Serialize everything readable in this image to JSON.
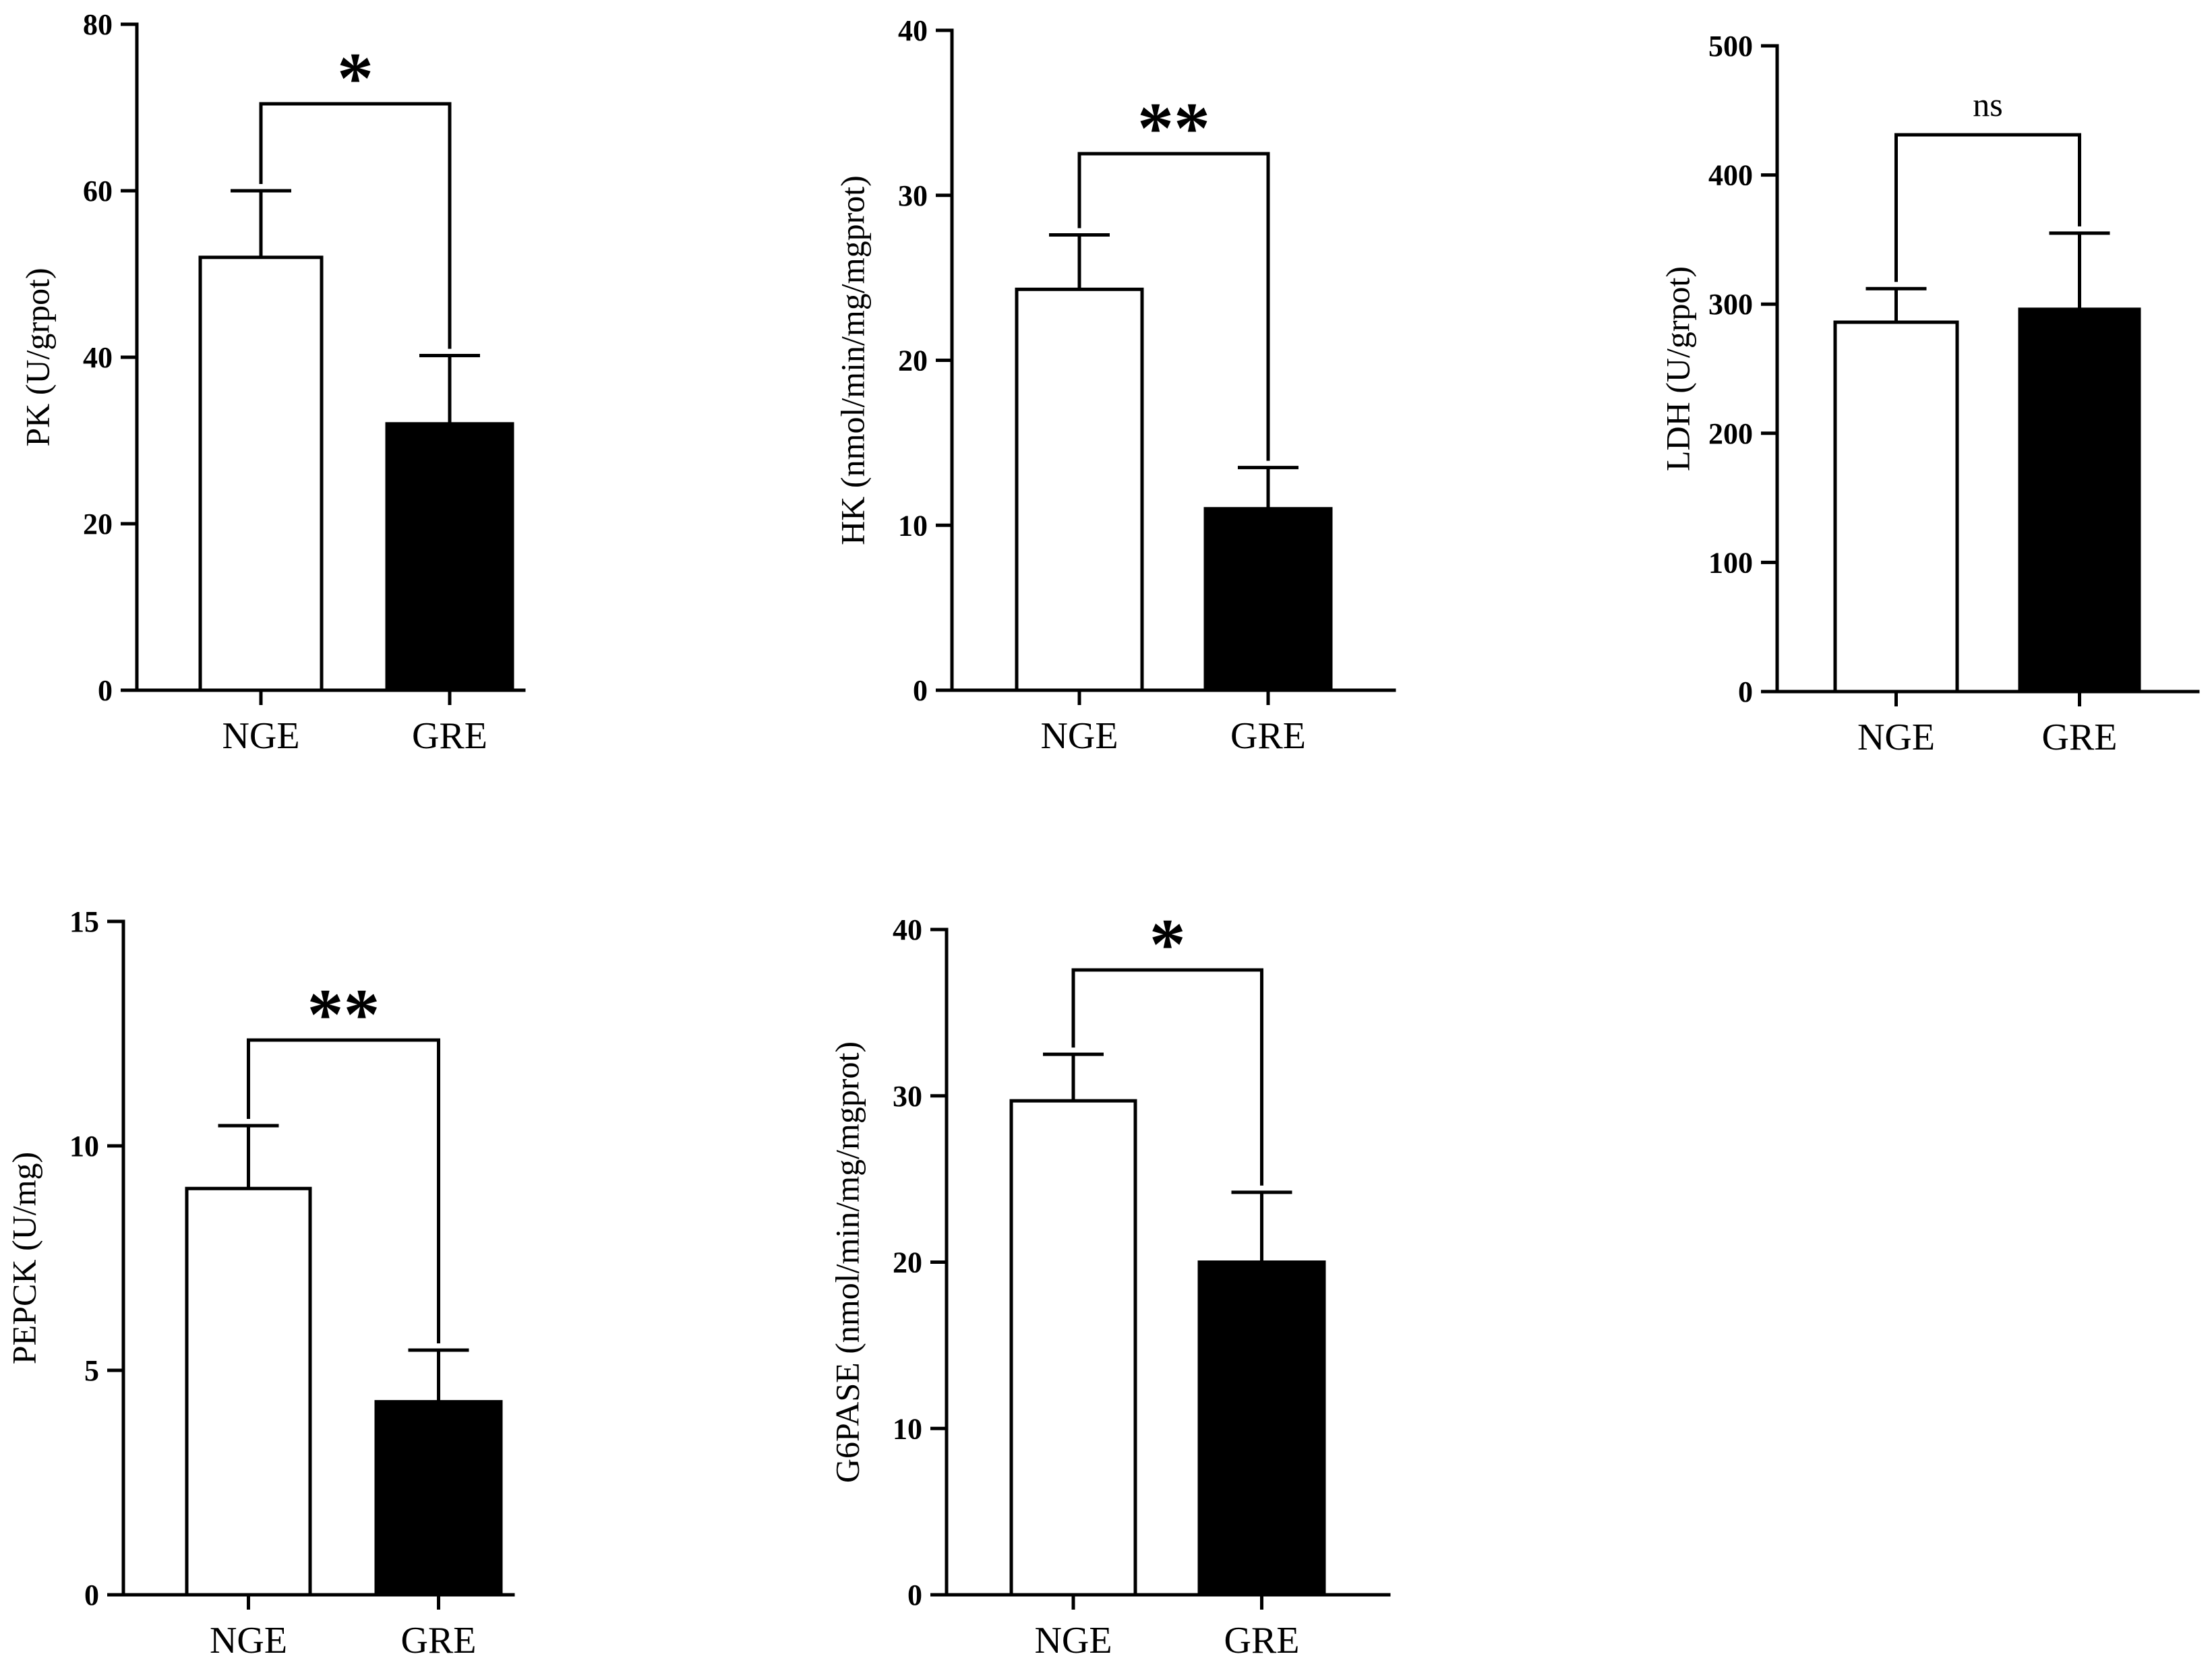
{
  "figure": {
    "colors": {
      "axis": "#000000",
      "nge_fill": "#ffffff",
      "gre_fill": "#000000",
      "bar_stroke": "#000000"
    },
    "categories": [
      "NGE",
      "GRE"
    ]
  },
  "chart_data": [
    {
      "type": "bar",
      "ylabel": "PK (U/grpot)",
      "categories": [
        "NGE",
        "GRE"
      ],
      "values": [
        52,
        32
      ],
      "error_upper": [
        60,
        40.2
      ],
      "ylim": [
        0,
        80
      ],
      "yticks": [
        "0",
        "20",
        "40",
        "60",
        "80"
      ],
      "significance": "*"
    },
    {
      "type": "bar",
      "ylabel": "HK (nmol/min/mg/mgprot)",
      "categories": [
        "NGE",
        "GRE"
      ],
      "values": [
        24.3,
        11
      ],
      "error_upper": [
        27.6,
        13.5
      ],
      "ylim": [
        0,
        40
      ],
      "yticks": [
        "0",
        "10",
        "20",
        "30",
        "40"
      ],
      "significance": "**"
    },
    {
      "type": "bar",
      "ylabel": "LDH (U/grpot)",
      "categories": [
        "NGE",
        "GRE"
      ],
      "values": [
        286,
        296
      ],
      "error_upper": [
        312,
        355
      ],
      "ylim": [
        0,
        500
      ],
      "yticks": [
        "0",
        "100",
        "200",
        "300",
        "400",
        "500"
      ],
      "significance": "ns"
    },
    {
      "type": "bar",
      "ylabel": "PEPCK (U/mg)",
      "categories": [
        "NGE",
        "GRE"
      ],
      "values": [
        9.05,
        4.3
      ],
      "error_upper": [
        10.45,
        5.45
      ],
      "ylim": [
        0,
        15
      ],
      "yticks": [
        "0",
        "5",
        "10",
        "15"
      ],
      "significance": "**"
    },
    {
      "type": "bar",
      "ylabel": "G6PASE (nmol/min/mg/mgprot)",
      "categories": [
        "NGE",
        "GRE"
      ],
      "values": [
        29.7,
        20
      ],
      "error_upper": [
        32.5,
        24.2
      ],
      "ylim": [
        0,
        40
      ],
      "yticks": [
        "0",
        "10",
        "20",
        "30",
        "40"
      ],
      "significance": "*"
    }
  ]
}
